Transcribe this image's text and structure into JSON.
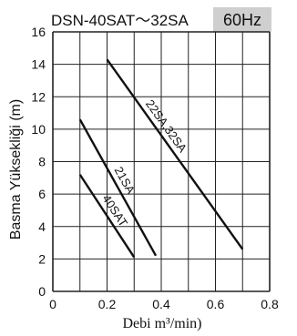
{
  "chart_data": {
    "type": "line",
    "title": "DSN-40SAT～32SA",
    "badge": "60Hz",
    "xlabel": "Debi m³/min)",
    "ylabel": "Basma Yüksekliği  (m)",
    "xlim": [
      0,
      0.8
    ],
    "ylim": [
      0,
      16
    ],
    "x_ticks": [
      "0",
      "0.2",
      "0.4",
      "0.6",
      "0.8"
    ],
    "y_ticks": [
      "0",
      "2",
      "4",
      "6",
      "8",
      "10",
      "12",
      "14",
      "16"
    ],
    "grid": true,
    "series": [
      {
        "name": "40SAT",
        "x": [
          0.1,
          0.3
        ],
        "y": [
          7.2,
          2.1
        ]
      },
      {
        "name": "21SA",
        "x": [
          0.1,
          0.38
        ],
        "y": [
          10.6,
          2.2
        ]
      },
      {
        "name": "22SA,32SA",
        "x": [
          0.2,
          0.7
        ],
        "y": [
          14.3,
          2.6
        ]
      }
    ],
    "colors": {
      "line": "#111111",
      "grid": "#222222",
      "badge_bg": "#cfcfcf"
    }
  }
}
